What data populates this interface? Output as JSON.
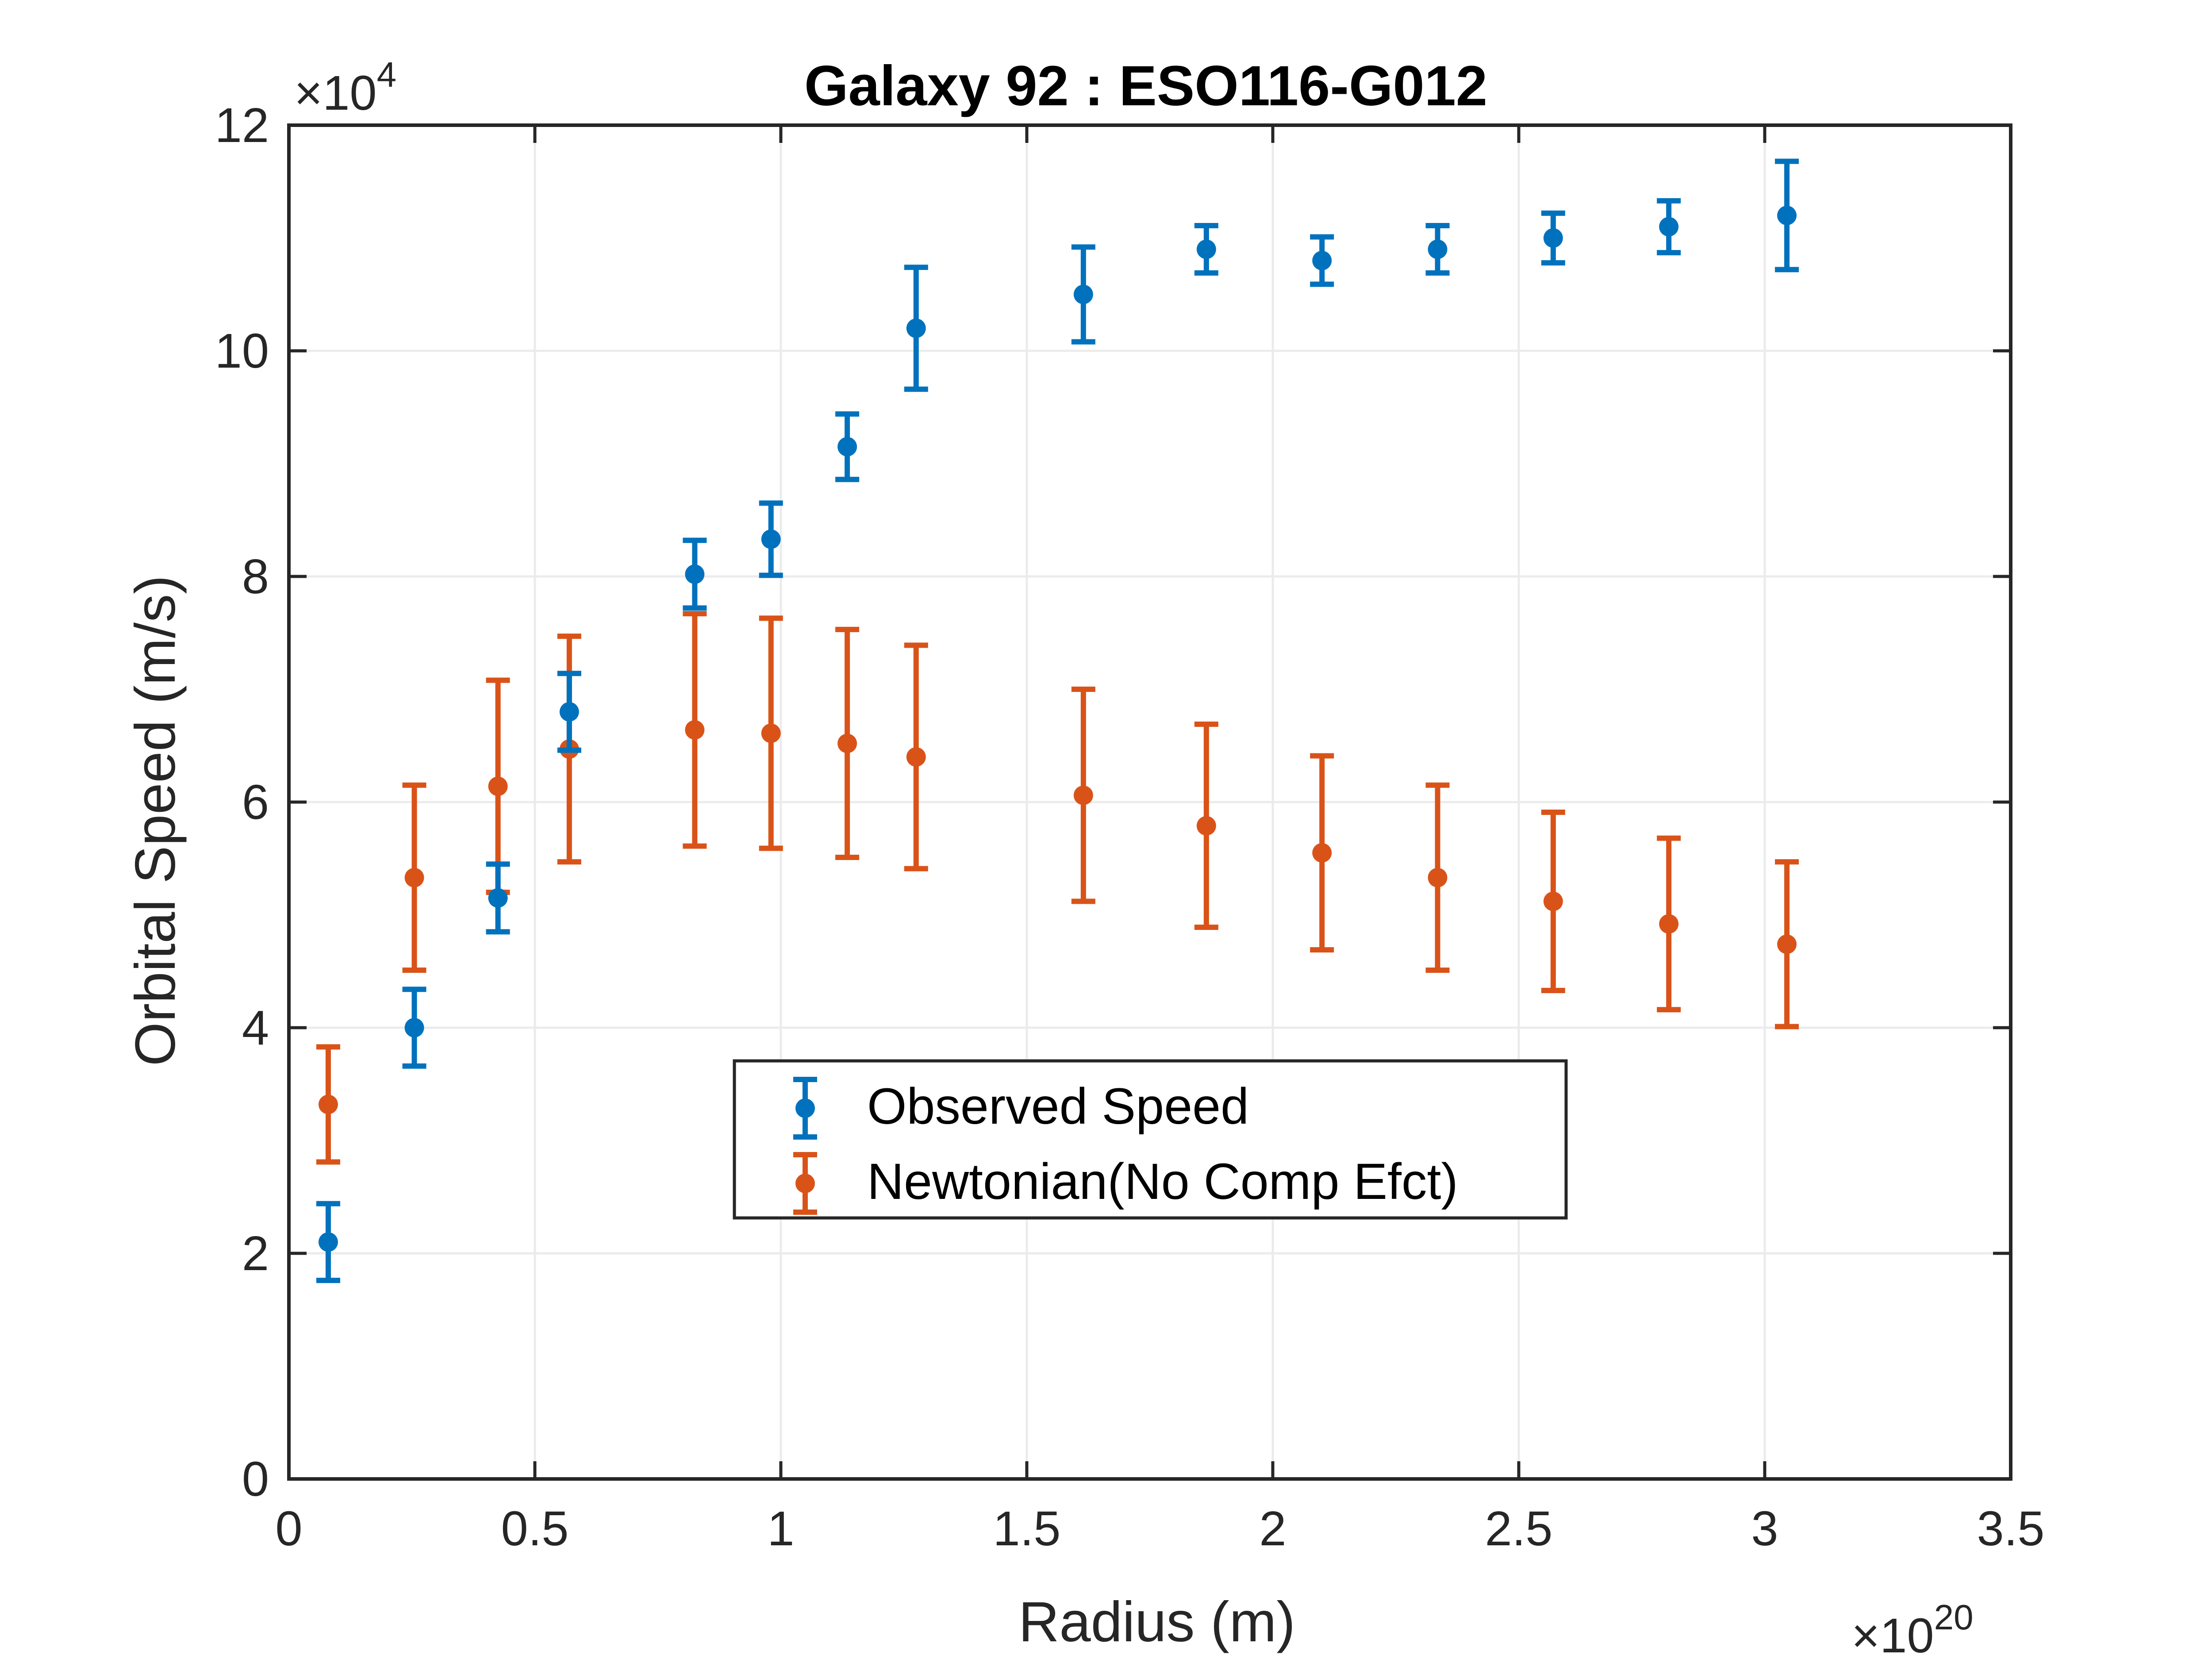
{
  "chart_data": {
    "type": "scatter",
    "title": "Galaxy 92 : ESO116-G012",
    "xlabel": "Radius (m)",
    "ylabel": "Orbital Speed (m/s)",
    "x_exponent": "×10",
    "x_exponent_power": "20",
    "y_exponent": "×10",
    "y_exponent_power": "4",
    "xlim": [
      0,
      3.5
    ],
    "ylim": [
      0,
      12
    ],
    "x_ticks": [
      "0",
      "0.5",
      "1",
      "1.5",
      "2",
      "2.5",
      "3",
      "3.5"
    ],
    "y_ticks": [
      "0",
      "2",
      "4",
      "6",
      "8",
      "10",
      "12"
    ],
    "grid": true,
    "legend_position": "center",
    "series": [
      {
        "name": "Observed Speed",
        "color": "#0072BD",
        "x": [
          0.08,
          0.255,
          0.425,
          0.57,
          0.825,
          0.98,
          1.135,
          1.275,
          1.615,
          1.865,
          2.1,
          2.335,
          2.57,
          2.805,
          3.045
        ],
        "y": [
          2.1,
          4.0,
          5.15,
          6.8,
          8.02,
          8.33,
          9.15,
          10.2,
          10.5,
          10.9,
          10.8,
          10.9,
          11.0,
          11.1,
          11.2
        ],
        "err": [
          0.34,
          0.34,
          0.3,
          0.34,
          0.3,
          0.32,
          0.29,
          0.54,
          0.42,
          0.21,
          0.21,
          0.21,
          0.22,
          0.23,
          0.48
        ]
      },
      {
        "name": "Newtonian(No Comp Efct)",
        "color": "#D95319",
        "x": [
          0.08,
          0.255,
          0.425,
          0.57,
          0.825,
          0.98,
          1.135,
          1.275,
          1.615,
          1.865,
          2.1,
          2.335,
          2.57,
          2.805,
          3.045
        ],
        "y": [
          3.32,
          5.33,
          6.14,
          6.47,
          6.64,
          6.61,
          6.52,
          6.4,
          6.06,
          5.79,
          5.55,
          5.33,
          5.12,
          4.92,
          4.74
        ],
        "err": [
          0.51,
          0.82,
          0.94,
          1.0,
          1.03,
          1.02,
          1.01,
          0.99,
          0.94,
          0.9,
          0.86,
          0.82,
          0.79,
          0.76,
          0.73
        ]
      }
    ]
  }
}
